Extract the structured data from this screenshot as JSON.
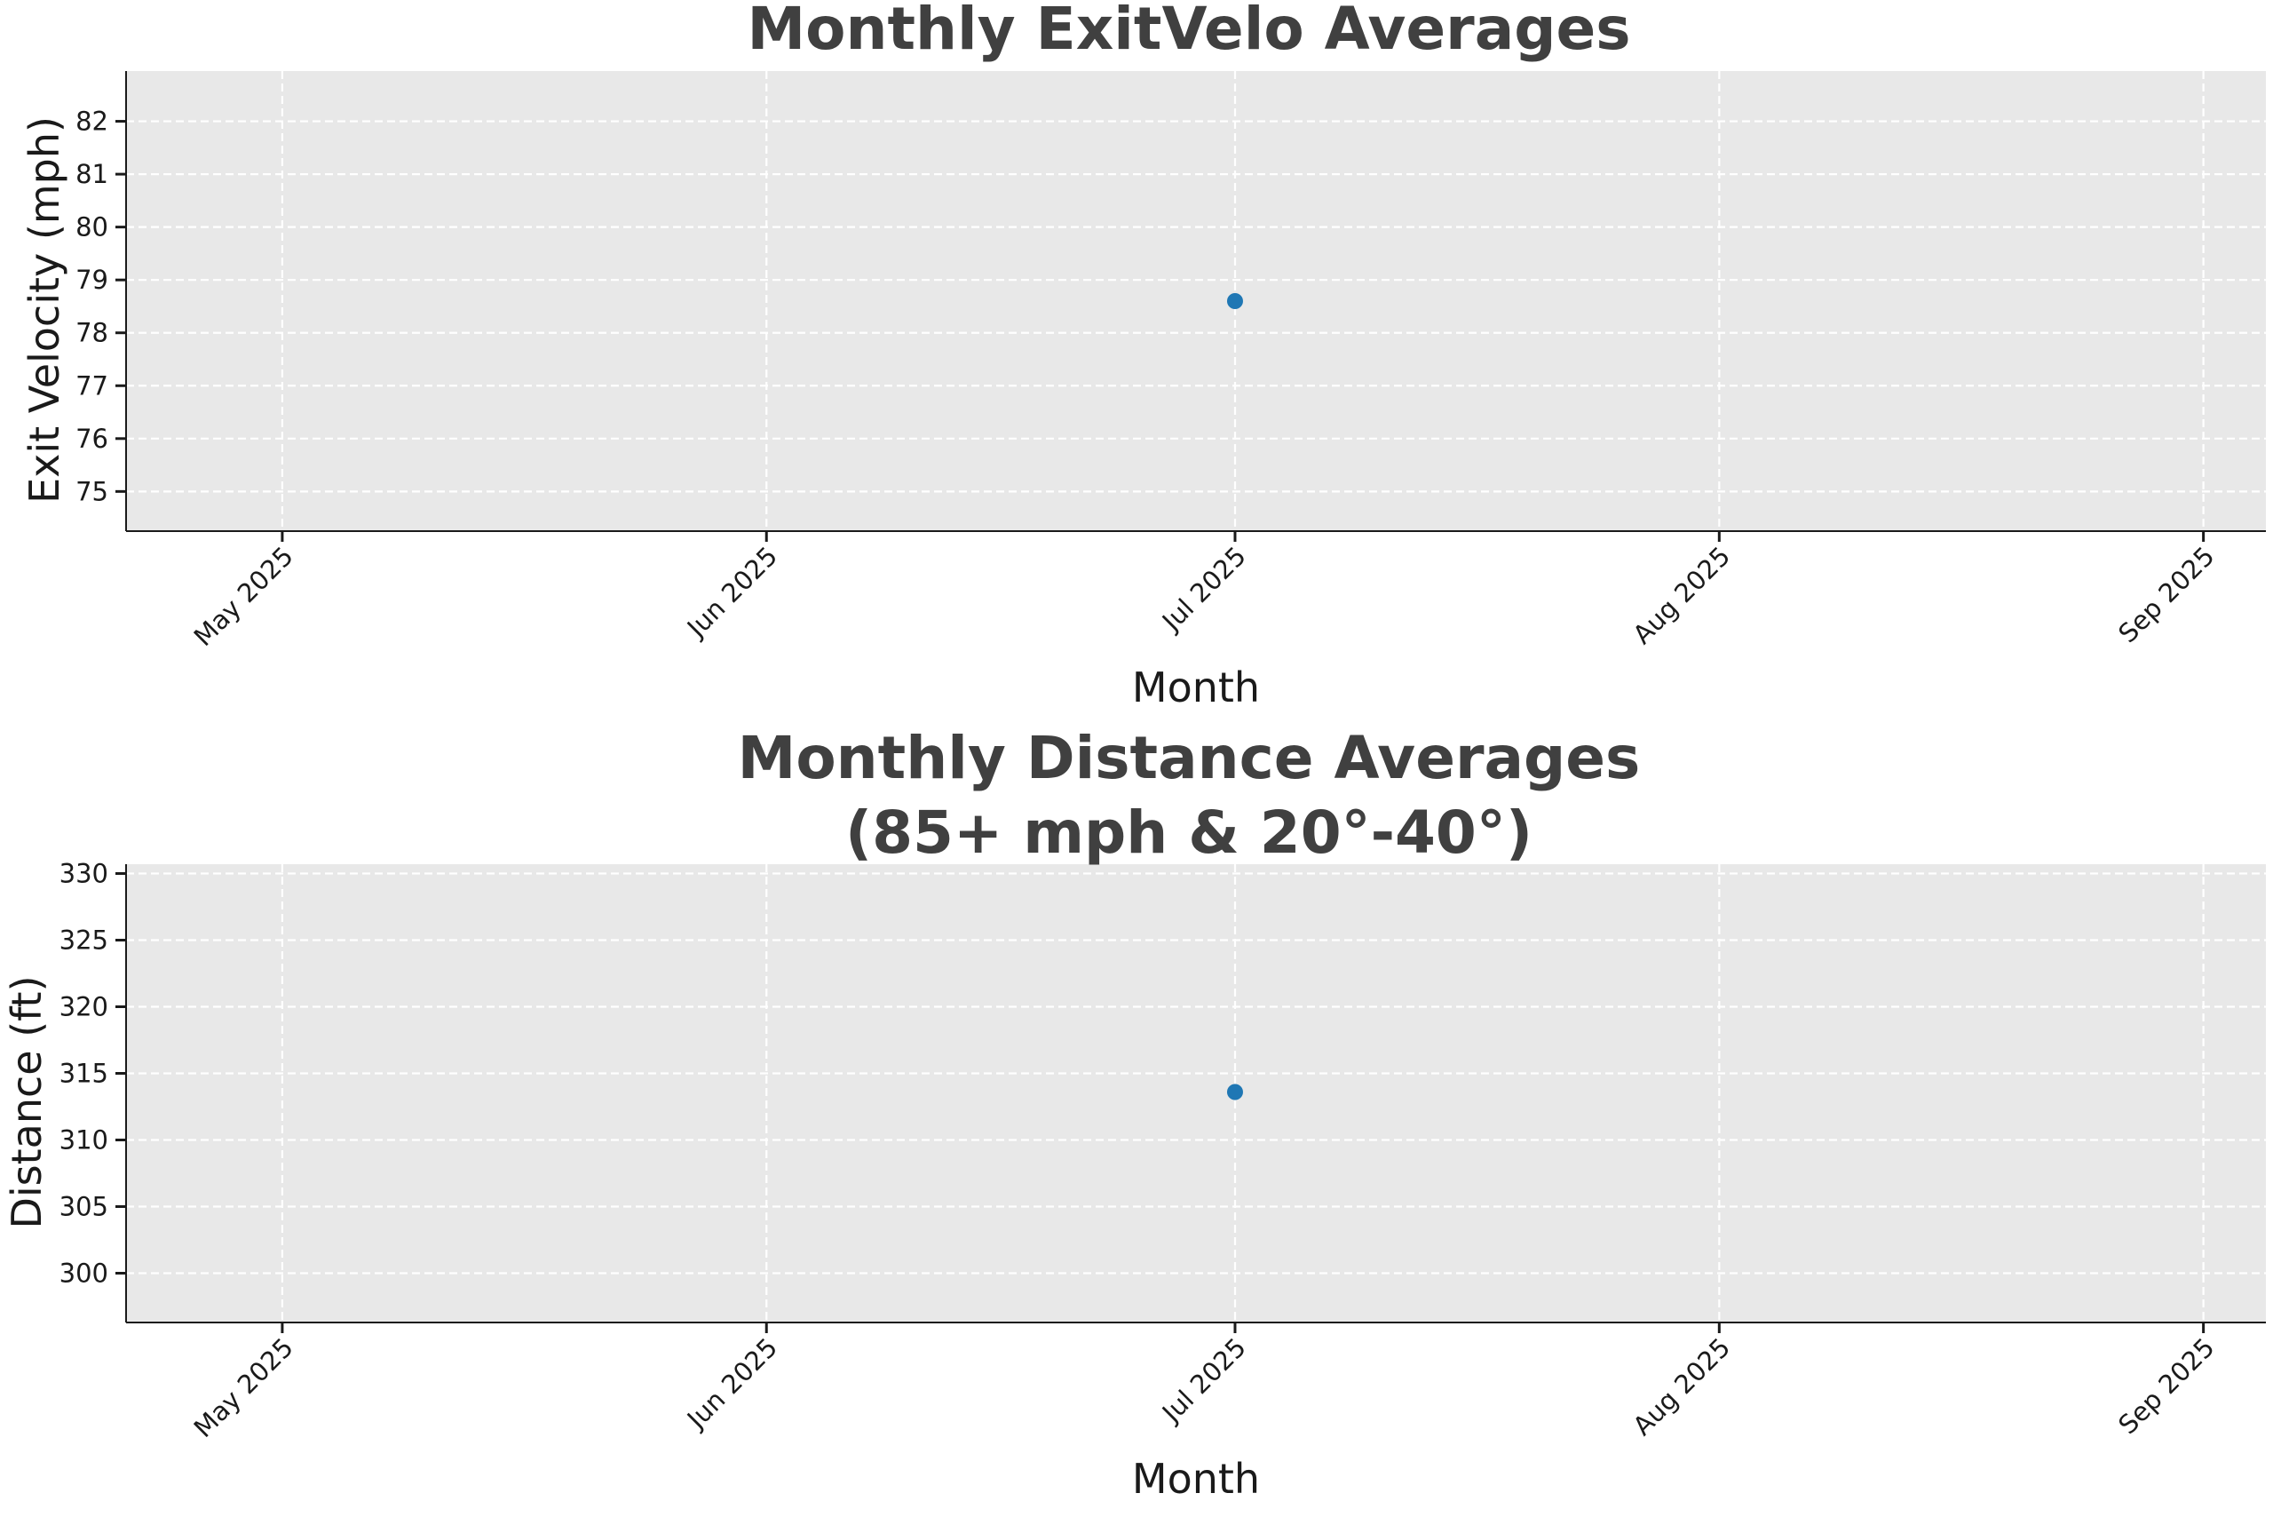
{
  "chart_data": [
    {
      "type": "scatter",
      "title": "Monthly ExitVelo Averages",
      "xlabel": "Month",
      "ylabel": "Exit Velocity (mph)",
      "x_ticks": [
        "2025-05-01",
        "2025-06-01",
        "2025-07-01",
        "2025-08-01",
        "2025-09-01"
      ],
      "x_tick_labels": [
        "May 2025",
        "Jun 2025",
        "Jul 2025",
        "Aug 2025",
        "Sep 2025"
      ],
      "xlim": [
        "2025-04-21",
        "2025-09-05"
      ],
      "ylim": [
        74.25,
        82.95
      ],
      "y_ticks": [
        75,
        76,
        77,
        78,
        79,
        80,
        81,
        82
      ],
      "grid": true,
      "series": [
        {
          "x": [
            "2025-07-01"
          ],
          "values": [
            78.6
          ]
        }
      ]
    },
    {
      "type": "scatter",
      "title": "Monthly Distance Averages\n(85+ mph & 20°-40°)",
      "xlabel": "Month",
      "ylabel": "Distance (ft)",
      "x_ticks": [
        "2025-05-01",
        "2025-06-01",
        "2025-07-01",
        "2025-08-01",
        "2025-09-01"
      ],
      "x_tick_labels": [
        "May 2025",
        "Jun 2025",
        "Jul 2025",
        "Aug 2025",
        "Sep 2025"
      ],
      "xlim": [
        "2025-04-21",
        "2025-09-05"
      ],
      "ylim": [
        296.3,
        330.7
      ],
      "y_ticks": [
        300,
        305,
        310,
        315,
        320,
        325,
        330
      ],
      "grid": true,
      "series": [
        {
          "x": [
            "2025-07-01"
          ],
          "values": [
            313.6
          ]
        }
      ]
    }
  ],
  "colors": {
    "plot_background": "#e8e8e8",
    "grid": "#ffffff",
    "point": "#1f77b4",
    "title": "#404040",
    "axis": "#1a1a1a"
  }
}
